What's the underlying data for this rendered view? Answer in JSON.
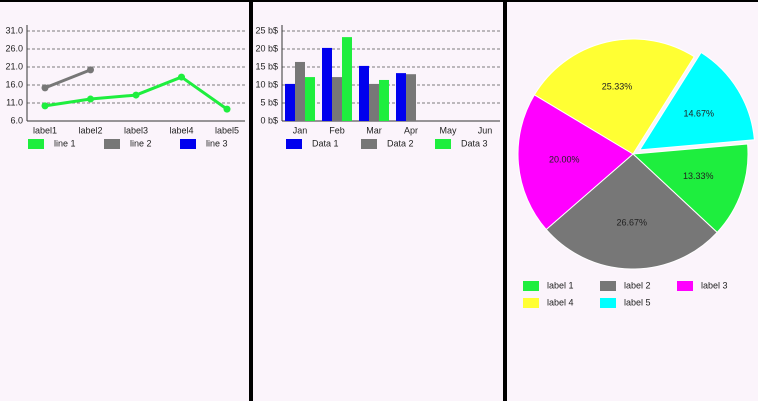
{
  "chart_data": [
    {
      "type": "line",
      "categories": [
        "label1",
        "label2",
        "label3",
        "label4",
        "label5"
      ],
      "series": [
        {
          "name": "line 1",
          "color": "#1eee3e",
          "values": [
            10.2,
            12.1,
            13.2,
            18.2,
            9.3
          ]
        },
        {
          "name": "line 2",
          "color": "#777777",
          "values": [
            15.2,
            20.2,
            null,
            null,
            null
          ]
        },
        {
          "name": "line 3",
          "color": "#0000ee",
          "values": [
            null,
            null,
            null,
            null,
            null
          ]
        }
      ],
      "ylim": [
        6,
        31
      ],
      "yticks": [
        {
          "value": 6,
          "label": "6.0"
        },
        {
          "value": 11,
          "label": "11.0"
        },
        {
          "value": 16,
          "label": "16.0"
        },
        {
          "value": 21,
          "label": "21.0"
        },
        {
          "value": 26,
          "label": "26.0"
        },
        {
          "value": 31,
          "label": "31.0"
        }
      ],
      "grid": true
    },
    {
      "type": "bar",
      "categories": [
        "Jan",
        "Feb",
        "Mar",
        "Apr",
        "May",
        "Jun"
      ],
      "series": [
        {
          "name": "Data 1",
          "color": "#0000ee",
          "values": [
            10.3,
            20.3,
            15.3,
            13.3,
            null,
            null
          ]
        },
        {
          "name": "Data 2",
          "color": "#777777",
          "values": [
            16.4,
            12.2,
            10.3,
            13,
            null,
            null
          ]
        },
        {
          "name": "Data 3",
          "color": "#1eee3e",
          "values": [
            12.2,
            23.3,
            11.4,
            null,
            null,
            null
          ]
        }
      ],
      "ylim": [
        0,
        25
      ],
      "yticks": [
        {
          "value": 0,
          "label": "0 b$"
        },
        {
          "value": 5,
          "label": "5 b$"
        },
        {
          "value": 10,
          "label": "10 b$"
        },
        {
          "value": 15,
          "label": "15 b$"
        },
        {
          "value": 20,
          "label": "20 b$"
        },
        {
          "value": 25,
          "label": "25 b$"
        }
      ],
      "grid": true
    },
    {
      "type": "pie",
      "categories": [
        "label 1",
        "label 2",
        "label 3",
        "label 4",
        "label 5"
      ],
      "values": [
        13.33,
        26.67,
        20,
        25.33,
        14.67
      ],
      "value_labels": [
        "13.33%",
        "26.67%",
        "20.00%",
        "25.33%",
        "14.67%"
      ],
      "colors": [
        "#1eee3e",
        "#777777",
        "#ff00ff",
        "#ffff33",
        "#00ffff"
      ]
    }
  ]
}
